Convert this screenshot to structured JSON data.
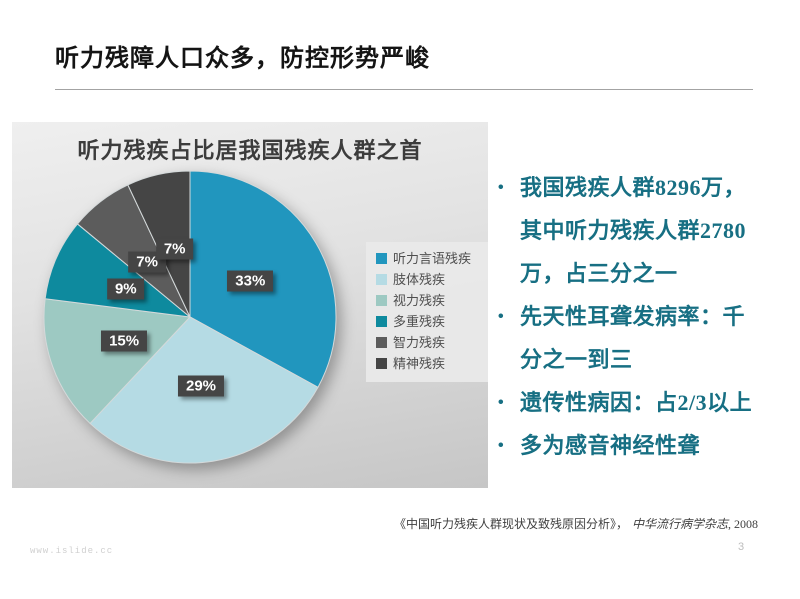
{
  "slide": {
    "title": "听力残障人口众多，防控形势严峻",
    "page_number": "3",
    "watermark": "www.islide.cc",
    "citation": {
      "work": "《中国听力残疾人群现状及致残原因分析》，",
      "journal": "中华流行病学杂志",
      "year": ", 2008"
    }
  },
  "chart_data": {
    "type": "pie",
    "title": "听力残疾占比居我国残疾人群之首",
    "categories": [
      "听力言语残疾",
      "肢体残疾",
      "视力残疾",
      "多重残疾",
      "智力残疾",
      "精神残疾"
    ],
    "values": [
      33,
      29,
      15,
      9,
      7,
      7
    ],
    "labels": [
      "33%",
      "29%",
      "15%",
      "9%",
      "7%",
      "7%"
    ],
    "unit": "%",
    "colors": [
      "#2196be",
      "#b5dbe4",
      "#9dc9c2",
      "#0e8a9e",
      "#5c5c5c",
      "#454545"
    ],
    "start_angle_deg": 0,
    "direction": "clockwise",
    "legend_position": "right",
    "label_box_color": "#454545",
    "label_text_color": "#ffffff"
  },
  "bullets": [
    {
      "segments": [
        {
          "t": "我国残疾人群",
          "s": "cjk"
        },
        {
          "t": "8296",
          "s": "num"
        },
        {
          "t": "万，其中听力残疾人群",
          "s": "cjk"
        },
        {
          "t": "2780",
          "s": "num"
        },
        {
          "t": "万，占三分之一",
          "s": "cjk"
        }
      ]
    },
    {
      "segments": [
        {
          "t": "先天性耳聋发病率：千分之一到三",
          "s": "cjk"
        }
      ]
    },
    {
      "segments": [
        {
          "t": "遗传性病因：占",
          "s": "cjk"
        },
        {
          "t": "2/3",
          "s": "num"
        },
        {
          "t": "以上",
          "s": "cjk"
        }
      ]
    },
    {
      "segments": [
        {
          "t": "多为感音神经性聋",
          "s": "cjk"
        }
      ]
    }
  ],
  "style": {
    "accent_teal": "#176f83",
    "panel_gray_top": "#efefef",
    "panel_gray_bottom": "#c6c6c6"
  }
}
